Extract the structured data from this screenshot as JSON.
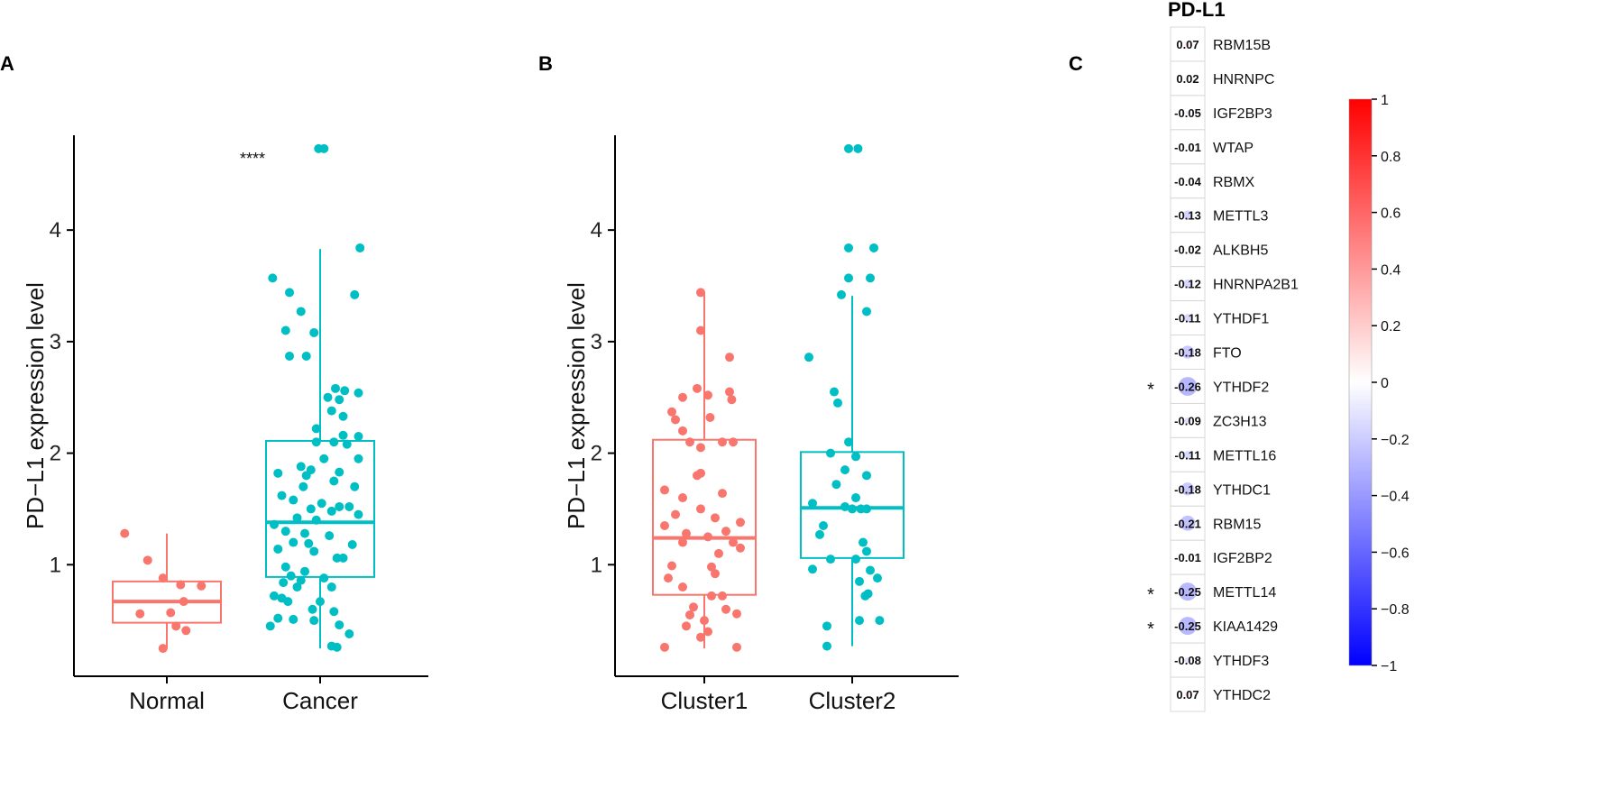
{
  "colors": {
    "normal": "#F8766D",
    "cancer": "#00BFC4",
    "axis": "#000000",
    "cb_neg": "#0000FF",
    "cb_mid": "#FFFFFF",
    "cb_pos": "#FF0000"
  },
  "panels": {
    "A": {
      "letter": "A"
    },
    "B": {
      "letter": "B"
    },
    "C": {
      "letter": "C"
    }
  },
  "chart_data": [
    {
      "id": "A",
      "type": "box-jitter",
      "ylabel": "PD−L1 expression level",
      "ylim": [
        0.0,
        4.85
      ],
      "yticks": [
        1,
        2,
        3,
        4
      ],
      "yticklabels": [
        "1",
        "2",
        "3",
        "4"
      ],
      "significance": "****",
      "groups": [
        {
          "name": "Normal",
          "color": "#F8766D",
          "box": {
            "min": 0.25,
            "q1": 0.48,
            "median": 0.67,
            "q3": 0.85,
            "max": 1.28
          },
          "points": [
            [
              -0.55,
              1.28
            ],
            [
              -0.25,
              1.04
            ],
            [
              -0.05,
              0.88
            ],
            [
              0.18,
              0.82
            ],
            [
              0.45,
              0.81
            ],
            [
              -0.35,
              0.56
            ],
            [
              0.05,
              0.57
            ],
            [
              0.22,
              0.67
            ],
            [
              0.12,
              0.45
            ],
            [
              0.25,
              0.41
            ],
            [
              -0.05,
              0.25
            ]
          ]
        },
        {
          "name": "Cancer",
          "color": "#00BFC4",
          "box": {
            "min": 0.25,
            "q1": 0.89,
            "median": 1.38,
            "q3": 2.11,
            "max": 3.83
          },
          "points": [
            [
              -0.02,
              4.73
            ],
            [
              0.05,
              4.73
            ],
            [
              0.52,
              3.84
            ],
            [
              -0.62,
              3.57
            ],
            [
              -0.4,
              3.44
            ],
            [
              0.45,
              3.42
            ],
            [
              -0.25,
              3.27
            ],
            [
              -0.45,
              3.1
            ],
            [
              -0.08,
              3.08
            ],
            [
              -0.4,
              2.87
            ],
            [
              -0.18,
              2.87
            ],
            [
              0.2,
              2.58
            ],
            [
              0.32,
              2.56
            ],
            [
              0.5,
              2.54
            ],
            [
              0.1,
              2.5
            ],
            [
              0.25,
              2.48
            ],
            [
              0.15,
              2.38
            ],
            [
              0.3,
              2.33
            ],
            [
              -0.05,
              2.22
            ],
            [
              0.3,
              2.16
            ],
            [
              0.5,
              2.15
            ],
            [
              -0.05,
              2.1
            ],
            [
              0.18,
              2.1
            ],
            [
              0.35,
              2.08
            ],
            [
              0.05,
              1.95
            ],
            [
              0.5,
              1.95
            ],
            [
              -0.25,
              1.88
            ],
            [
              -0.12,
              1.85
            ],
            [
              0.25,
              1.83
            ],
            [
              -0.55,
              1.82
            ],
            [
              -0.18,
              1.8
            ],
            [
              0.18,
              1.75
            ],
            [
              -0.22,
              1.7
            ],
            [
              0.45,
              1.7
            ],
            [
              -0.5,
              1.62
            ],
            [
              -0.35,
              1.58
            ],
            [
              0.02,
              1.55
            ],
            [
              0.25,
              1.52
            ],
            [
              0.38,
              1.52
            ],
            [
              -0.12,
              1.5
            ],
            [
              0.15,
              1.48
            ],
            [
              0.5,
              1.45
            ],
            [
              -0.3,
              1.42
            ],
            [
              -0.05,
              1.4
            ],
            [
              -0.6,
              1.36
            ],
            [
              -0.45,
              1.3
            ],
            [
              -0.2,
              1.28
            ],
            [
              0.12,
              1.26
            ],
            [
              -0.35,
              1.2
            ],
            [
              -0.15,
              1.19
            ],
            [
              0.42,
              1.18
            ],
            [
              -0.55,
              1.14
            ],
            [
              -0.08,
              1.12
            ],
            [
              0.22,
              1.06
            ],
            [
              0.3,
              1.06
            ],
            [
              -0.45,
              0.98
            ],
            [
              -0.2,
              0.94
            ],
            [
              -0.38,
              0.9
            ],
            [
              0.05,
              0.88
            ],
            [
              -0.25,
              0.86
            ],
            [
              -0.48,
              0.84
            ],
            [
              -0.3,
              0.8
            ],
            [
              0.15,
              0.8
            ],
            [
              -0.6,
              0.72
            ],
            [
              -0.5,
              0.7
            ],
            [
              -0.42,
              0.67
            ],
            [
              0.0,
              0.67
            ],
            [
              -0.1,
              0.6
            ],
            [
              0.18,
              0.58
            ],
            [
              -0.55,
              0.52
            ],
            [
              -0.35,
              0.51
            ],
            [
              -0.08,
              0.5
            ],
            [
              0.25,
              0.46
            ],
            [
              -0.65,
              0.45
            ],
            [
              0.38,
              0.38
            ],
            [
              0.15,
              0.27
            ],
            [
              0.22,
              0.26
            ]
          ]
        }
      ]
    },
    {
      "id": "B",
      "type": "box-jitter",
      "ylabel": "PD−L1 expression level",
      "ylim": [
        0.0,
        4.85
      ],
      "yticks": [
        1,
        2,
        3,
        4
      ],
      "yticklabels": [
        "1",
        "2",
        "3",
        "4"
      ],
      "groups": [
        {
          "name": "Cluster1",
          "color": "#F8766D",
          "box": {
            "min": 0.25,
            "q1": 0.73,
            "median": 1.24,
            "q3": 2.12,
            "max": 3.44
          },
          "points": [
            [
              -0.05,
              3.44
            ],
            [
              -0.05,
              3.1
            ],
            [
              0.35,
              2.86
            ],
            [
              -0.1,
              2.58
            ],
            [
              0.35,
              2.55
            ],
            [
              -0.3,
              2.5
            ],
            [
              0.05,
              2.52
            ],
            [
              0.38,
              2.48
            ],
            [
              -0.45,
              2.37
            ],
            [
              0.08,
              2.32
            ],
            [
              -0.4,
              2.3
            ],
            [
              -0.3,
              2.2
            ],
            [
              0.25,
              2.1
            ],
            [
              -0.2,
              2.1
            ],
            [
              0.4,
              2.1
            ],
            [
              -0.05,
              2.05
            ],
            [
              -0.05,
              1.82
            ],
            [
              -0.1,
              1.8
            ],
            [
              -0.55,
              1.67
            ],
            [
              0.25,
              1.64
            ],
            [
              -0.3,
              1.6
            ],
            [
              -0.05,
              1.5
            ],
            [
              -0.4,
              1.45
            ],
            [
              0.15,
              1.42
            ],
            [
              0.5,
              1.38
            ],
            [
              -0.55,
              1.35
            ],
            [
              0.3,
              1.3
            ],
            [
              -0.25,
              1.28
            ],
            [
              0.05,
              1.25
            ],
            [
              -0.3,
              1.2
            ],
            [
              0.4,
              1.2
            ],
            [
              0.5,
              1.15
            ],
            [
              0.2,
              1.1
            ],
            [
              -0.45,
              0.99
            ],
            [
              0.1,
              0.98
            ],
            [
              -0.5,
              0.88
            ],
            [
              0.15,
              0.92
            ],
            [
              -0.3,
              0.8
            ],
            [
              0.25,
              0.72
            ],
            [
              0.1,
              0.72
            ],
            [
              -0.15,
              0.62
            ],
            [
              0.3,
              0.6
            ],
            [
              0.45,
              0.56
            ],
            [
              -0.2,
              0.55
            ],
            [
              0.0,
              0.5
            ],
            [
              -0.25,
              0.45
            ],
            [
              0.05,
              0.4
            ],
            [
              -0.05,
              0.35
            ],
            [
              -0.55,
              0.26
            ],
            [
              0.45,
              0.26
            ]
          ]
        },
        {
          "name": "Cluster2",
          "color": "#00BFC4",
          "box": {
            "min": 0.27,
            "q1": 1.06,
            "median": 1.51,
            "q3": 2.01,
            "max": 3.41
          },
          "points": [
            [
              -0.05,
              4.73
            ],
            [
              0.08,
              4.73
            ],
            [
              -0.05,
              3.84
            ],
            [
              0.3,
              3.84
            ],
            [
              -0.05,
              3.57
            ],
            [
              0.25,
              3.57
            ],
            [
              -0.15,
              3.42
            ],
            [
              0.2,
              3.27
            ],
            [
              -0.6,
              2.86
            ],
            [
              -0.25,
              2.55
            ],
            [
              -0.2,
              2.45
            ],
            [
              -0.05,
              2.1
            ],
            [
              -0.3,
              2.0
            ],
            [
              0.05,
              1.97
            ],
            [
              -0.1,
              1.85
            ],
            [
              0.2,
              1.8
            ],
            [
              -0.22,
              1.72
            ],
            [
              0.05,
              1.6
            ],
            [
              -0.55,
              1.55
            ],
            [
              -0.4,
              1.35
            ],
            [
              0.0,
              1.5
            ],
            [
              0.12,
              1.5
            ],
            [
              -0.1,
              1.52
            ],
            [
              0.2,
              1.5
            ],
            [
              -0.45,
              1.27
            ],
            [
              0.15,
              1.2
            ],
            [
              0.2,
              1.12
            ],
            [
              0.05,
              1.05
            ],
            [
              -0.3,
              1.05
            ],
            [
              -0.55,
              0.96
            ],
            [
              0.25,
              0.95
            ],
            [
              0.35,
              0.88
            ],
            [
              0.1,
              0.85
            ],
            [
              0.22,
              0.74
            ],
            [
              0.18,
              0.72
            ],
            [
              0.1,
              0.5
            ],
            [
              0.38,
              0.5
            ],
            [
              -0.35,
              0.45
            ],
            [
              -0.35,
              0.27
            ]
          ]
        }
      ]
    },
    {
      "id": "C",
      "type": "heatmap",
      "title": "PD-L1",
      "colorbar": {
        "range": [
          -1,
          1
        ],
        "ticks": [
          "1",
          "0.8",
          "0.6",
          "0.4",
          "0.2",
          "0",
          "−0.2",
          "−0.4",
          "−0.6",
          "−0.8",
          "−1"
        ]
      },
      "rows": [
        {
          "gene": "RBM15B",
          "value": 0.07,
          "label": "0.07",
          "sig": ""
        },
        {
          "gene": "HNRNPC",
          "value": 0.02,
          "label": "0.02",
          "sig": ""
        },
        {
          "gene": "IGF2BP3",
          "value": -0.05,
          "label": "-0.05",
          "sig": ""
        },
        {
          "gene": "WTAP",
          "value": -0.01,
          "label": "-0.01",
          "sig": ""
        },
        {
          "gene": "RBMX",
          "value": -0.04,
          "label": "-0.04",
          "sig": ""
        },
        {
          "gene": "METTL3",
          "value": -0.13,
          "label": "-0.13",
          "sig": ""
        },
        {
          "gene": "ALKBH5",
          "value": -0.02,
          "label": "-0.02",
          "sig": ""
        },
        {
          "gene": "HNRNPA2B1",
          "value": -0.12,
          "label": "-0.12",
          "sig": ""
        },
        {
          "gene": "YTHDF1",
          "value": -0.11,
          "label": "-0.11",
          "sig": ""
        },
        {
          "gene": "FTO",
          "value": -0.18,
          "label": "-0.18",
          "sig": ""
        },
        {
          "gene": "YTHDF2",
          "value": -0.26,
          "label": "-0.26",
          "sig": "*"
        },
        {
          "gene": "ZC3H13",
          "value": -0.09,
          "label": "-0.09",
          "sig": ""
        },
        {
          "gene": "METTL16",
          "value": -0.11,
          "label": "-0.11",
          "sig": ""
        },
        {
          "gene": "YTHDC1",
          "value": -0.18,
          "label": "-0.18",
          "sig": ""
        },
        {
          "gene": "RBM15",
          "value": -0.21,
          "label": "-0.21",
          "sig": ""
        },
        {
          "gene": "IGF2BP2",
          "value": -0.01,
          "label": "-0.01",
          "sig": ""
        },
        {
          "gene": "METTL14",
          "value": -0.25,
          "label": "-0.25",
          "sig": "*"
        },
        {
          "gene": "KIAA1429",
          "value": -0.25,
          "label": "-0.25",
          "sig": "*"
        },
        {
          "gene": "YTHDF3",
          "value": -0.08,
          "label": "-0.08",
          "sig": ""
        },
        {
          "gene": "YTHDC2",
          "value": 0.07,
          "label": "0.07",
          "sig": ""
        }
      ]
    }
  ]
}
